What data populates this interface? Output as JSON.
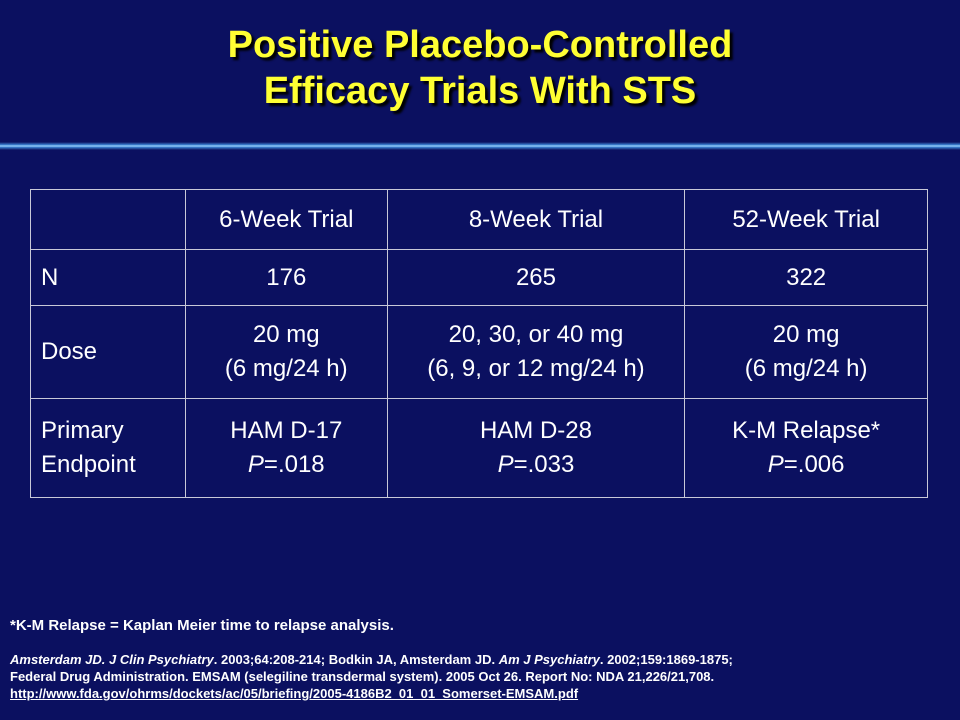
{
  "slide": {
    "title_line1": "Positive Placebo-Controlled",
    "title_line2": "Efficacy Trials With STS"
  },
  "table": {
    "headers": [
      "",
      "6-Week Trial",
      "8-Week Trial",
      "52-Week Trial"
    ],
    "rows": {
      "n": {
        "label": "N",
        "values": [
          "176",
          "265",
          "322"
        ]
      },
      "dose": {
        "label": "Dose",
        "values": [
          {
            "line1": "20 mg",
            "line2": "(6 mg/24 h)"
          },
          {
            "line1": "20, 30, or 40 mg",
            "line2": "(6, 9, or 12 mg/24 h)"
          },
          {
            "line1": "20 mg",
            "line2": "(6 mg/24 h)"
          }
        ]
      },
      "endpoint": {
        "label_line1": "Primary",
        "label_line2": "Endpoint",
        "values": [
          {
            "test": "HAM D-17",
            "p_symbol": "P",
            "p_value": "=.018"
          },
          {
            "test": "HAM D-28",
            "p_symbol": "P",
            "p_value": "=.033"
          },
          {
            "test": "K-M Relapse*",
            "p_symbol": "P",
            "p_value": "=.006"
          }
        ]
      }
    }
  },
  "footnote": "*K-M Relapse = Kaplan Meier time to relapse analysis.",
  "references": {
    "ref1_authors": "Amsterdam JD.",
    "ref1_journal": "J Clin Psychiatry",
    "ref1_details": ". 2003;64:208-214;   Bodkin JA, Amsterdam JD.",
    "ref2_journal": "Am J Psychiatry",
    "ref2_details": ". 2002;159:1869-1875;",
    "line2": "Federal Drug Administration. EMSAM (selegiline transdermal system).  2005 Oct 26. Report No: NDA 21,226/21,708.",
    "url": "http://www.fda.gov/ohrms/dockets/ac/05/briefing/2005-4186B2_01_01_Somerset-EMSAM.pdf"
  }
}
